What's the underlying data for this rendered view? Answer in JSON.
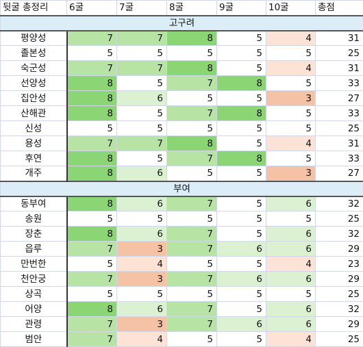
{
  "header": [
    "뒷굴 총정리",
    "6굴",
    "7굴",
    "8굴",
    "9굴",
    "10굴",
    "총점"
  ],
  "colors": {
    "8": "#8cd575",
    "7": "#b7e3a5",
    "6": "#dcf1d2",
    "5": "#ffffff",
    "4": "#fde3d6",
    "3": "#f6c2a6",
    "section_bg": "#dbeef7"
  },
  "sections": [
    {
      "title": "고구려",
      "rows": [
        {
          "name": "평양성",
          "scores": [
            7,
            7,
            8,
            5,
            4
          ],
          "total": 31
        },
        {
          "name": "졸본성",
          "scores": [
            5,
            5,
            5,
            5,
            5
          ],
          "total": 25
        },
        {
          "name": "숙군성",
          "scores": [
            7,
            7,
            8,
            5,
            4
          ],
          "total": 31
        },
        {
          "name": "선양성",
          "scores": [
            8,
            5,
            7,
            8,
            5
          ],
          "total": 33
        },
        {
          "name": "집안성",
          "scores": [
            8,
            6,
            5,
            5,
            3
          ],
          "total": 27
        },
        {
          "name": "산해관",
          "scores": [
            8,
            5,
            7,
            8,
            5
          ],
          "total": 33
        },
        {
          "name": "신성",
          "scores": [
            5,
            5,
            5,
            5,
            5
          ],
          "total": 25
        },
        {
          "name": "용성",
          "scores": [
            7,
            7,
            8,
            5,
            4
          ],
          "total": 31
        },
        {
          "name": "후연",
          "scores": [
            8,
            5,
            7,
            8,
            5
          ],
          "total": 33
        },
        {
          "name": "개주",
          "scores": [
            8,
            6,
            5,
            5,
            3
          ],
          "total": 27
        }
      ]
    },
    {
      "title": "부여",
      "rows": [
        {
          "name": "동부여",
          "scores": [
            8,
            6,
            7,
            5,
            6
          ],
          "total": 32
        },
        {
          "name": "송원",
          "scores": [
            5,
            5,
            5,
            5,
            5
          ],
          "total": 25
        },
        {
          "name": "장춘",
          "scores": [
            8,
            6,
            7,
            5,
            6
          ],
          "total": 32
        },
        {
          "name": "읍루",
          "scores": [
            7,
            3,
            7,
            6,
            6
          ],
          "total": 29
        },
        {
          "name": "만번한",
          "scores": [
            5,
            4,
            5,
            5,
            4
          ],
          "total": 23
        },
        {
          "name": "천안궁",
          "scores": [
            7,
            3,
            7,
            6,
            6
          ],
          "total": 29
        },
        {
          "name": "상곡",
          "scores": [
            5,
            5,
            5,
            5,
            5
          ],
          "total": 25
        },
        {
          "name": "어양",
          "scores": [
            8,
            6,
            7,
            5,
            6
          ],
          "total": 32
        },
        {
          "name": "관령",
          "scores": [
            7,
            3,
            7,
            6,
            6
          ],
          "total": 29
        },
        {
          "name": "범안",
          "scores": [
            7,
            4,
            5,
            5,
            4
          ],
          "total": 25
        }
      ]
    }
  ]
}
